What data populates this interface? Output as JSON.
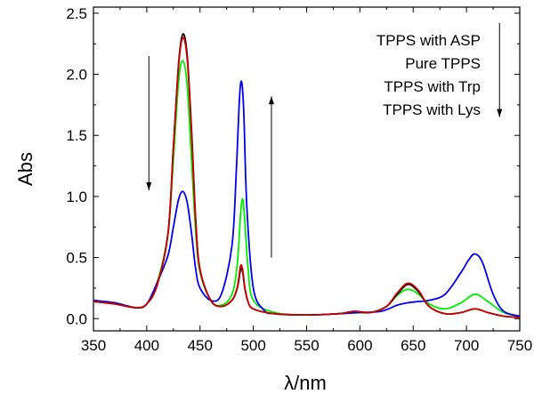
{
  "chart_data": {
    "type": "line",
    "title": "",
    "xlabel": "λ/nm",
    "ylabel": "Abs",
    "xlim": [
      350,
      750
    ],
    "ylim": [
      -0.1,
      2.55
    ],
    "xticks": [
      350,
      400,
      450,
      500,
      550,
      600,
      650,
      700,
      750
    ],
    "xtick_labels": [
      "350",
      "400",
      "450",
      "500",
      "550",
      "600",
      "650",
      "700",
      "750"
    ],
    "yticks": [
      0.0,
      0.5,
      1.0,
      1.5,
      2.0,
      2.5
    ],
    "ytick_labels": [
      "0.0",
      "0.5",
      "1.0",
      "1.5",
      "2.0",
      "2.5"
    ],
    "grid": false,
    "legend_position": "top-right",
    "legend_entries": [
      "TPPS with ASP",
      "Pure TPPS",
      "TPPS with Trp",
      "TPPS with Lys"
    ],
    "series": [
      {
        "name": "TPPS with ASP",
        "color": "#000000",
        "x": [
          350,
          370,
          390,
          400,
          410,
          420,
          425,
          430,
          434,
          438,
          442,
          446,
          450,
          460,
          470,
          480,
          485,
          488,
          490,
          492,
          495,
          500,
          520,
          550,
          580,
          595,
          610,
          625,
          635,
          645,
          655,
          665,
          680,
          695,
          708,
          720,
          735,
          750
        ],
        "y": [
          0.14,
          0.12,
          0.09,
          0.12,
          0.28,
          0.7,
          1.4,
          2.1,
          2.33,
          2.15,
          1.55,
          0.8,
          0.4,
          0.15,
          0.1,
          0.15,
          0.25,
          0.4,
          0.38,
          0.25,
          0.14,
          0.08,
          0.04,
          0.03,
          0.04,
          0.06,
          0.05,
          0.1,
          0.2,
          0.28,
          0.22,
          0.1,
          0.04,
          0.05,
          0.08,
          0.05,
          0.02,
          0.01
        ]
      },
      {
        "name": "Pure TPPS",
        "color": "#cc0000",
        "x": [
          350,
          370,
          390,
          400,
          410,
          420,
          425,
          430,
          434,
          438,
          442,
          446,
          450,
          460,
          470,
          480,
          485,
          488,
          490,
          492,
          495,
          500,
          520,
          550,
          580,
          595,
          610,
          625,
          635,
          645,
          655,
          665,
          680,
          695,
          708,
          720,
          735,
          750
        ],
        "y": [
          0.14,
          0.12,
          0.09,
          0.12,
          0.28,
          0.7,
          1.4,
          2.08,
          2.3,
          2.12,
          1.52,
          0.78,
          0.4,
          0.15,
          0.1,
          0.15,
          0.26,
          0.43,
          0.4,
          0.26,
          0.14,
          0.08,
          0.04,
          0.03,
          0.04,
          0.06,
          0.05,
          0.1,
          0.21,
          0.29,
          0.23,
          0.1,
          0.04,
          0.05,
          0.08,
          0.05,
          0.02,
          0.01
        ]
      },
      {
        "name": "TPPS with Trp",
        "color": "#00ee00",
        "x": [
          350,
          370,
          390,
          400,
          410,
          420,
          425,
          430,
          434,
          438,
          442,
          446,
          450,
          460,
          470,
          480,
          485,
          488,
          490,
          492,
          495,
          500,
          520,
          550,
          580,
          595,
          610,
          625,
          635,
          645,
          655,
          665,
          680,
          695,
          708,
          720,
          735,
          750
        ],
        "y": [
          0.14,
          0.12,
          0.09,
          0.12,
          0.3,
          0.7,
          1.3,
          1.95,
          2.11,
          1.9,
          1.3,
          0.7,
          0.38,
          0.15,
          0.11,
          0.2,
          0.45,
          0.85,
          0.98,
          0.8,
          0.42,
          0.15,
          0.05,
          0.03,
          0.04,
          0.05,
          0.05,
          0.1,
          0.19,
          0.24,
          0.2,
          0.12,
          0.08,
          0.13,
          0.2,
          0.14,
          0.05,
          0.02
        ]
      },
      {
        "name": "TPPS with Lys",
        "color": "#0000ee",
        "x": [
          350,
          370,
          390,
          400,
          410,
          420,
          425,
          430,
          434,
          438,
          442,
          446,
          450,
          460,
          470,
          480,
          484,
          487,
          489,
          491,
          494,
          500,
          510,
          520,
          550,
          580,
          600,
          620,
          635,
          645,
          655,
          665,
          680,
          695,
          702,
          708,
          715,
          725,
          735,
          750
        ],
        "y": [
          0.15,
          0.13,
          0.09,
          0.12,
          0.3,
          0.52,
          0.75,
          0.98,
          1.04,
          0.95,
          0.7,
          0.4,
          0.25,
          0.15,
          0.2,
          0.6,
          1.2,
          1.8,
          1.94,
          1.7,
          0.9,
          0.25,
          0.07,
          0.04,
          0.03,
          0.04,
          0.05,
          0.06,
          0.11,
          0.13,
          0.14,
          0.15,
          0.2,
          0.38,
          0.48,
          0.53,
          0.46,
          0.2,
          0.06,
          0.02
        ]
      }
    ],
    "annotations": [
      {
        "type": "arrow",
        "direction": "down",
        "x": 402,
        "y_from": 2.15,
        "y_to": 1.05
      },
      {
        "type": "arrow",
        "direction": "up",
        "x": 517,
        "y_from": 0.5,
        "y_to": 1.82
      },
      {
        "type": "arrow",
        "direction": "down",
        "x": 731,
        "y_from": 2.42,
        "y_to": 1.65
      }
    ]
  }
}
